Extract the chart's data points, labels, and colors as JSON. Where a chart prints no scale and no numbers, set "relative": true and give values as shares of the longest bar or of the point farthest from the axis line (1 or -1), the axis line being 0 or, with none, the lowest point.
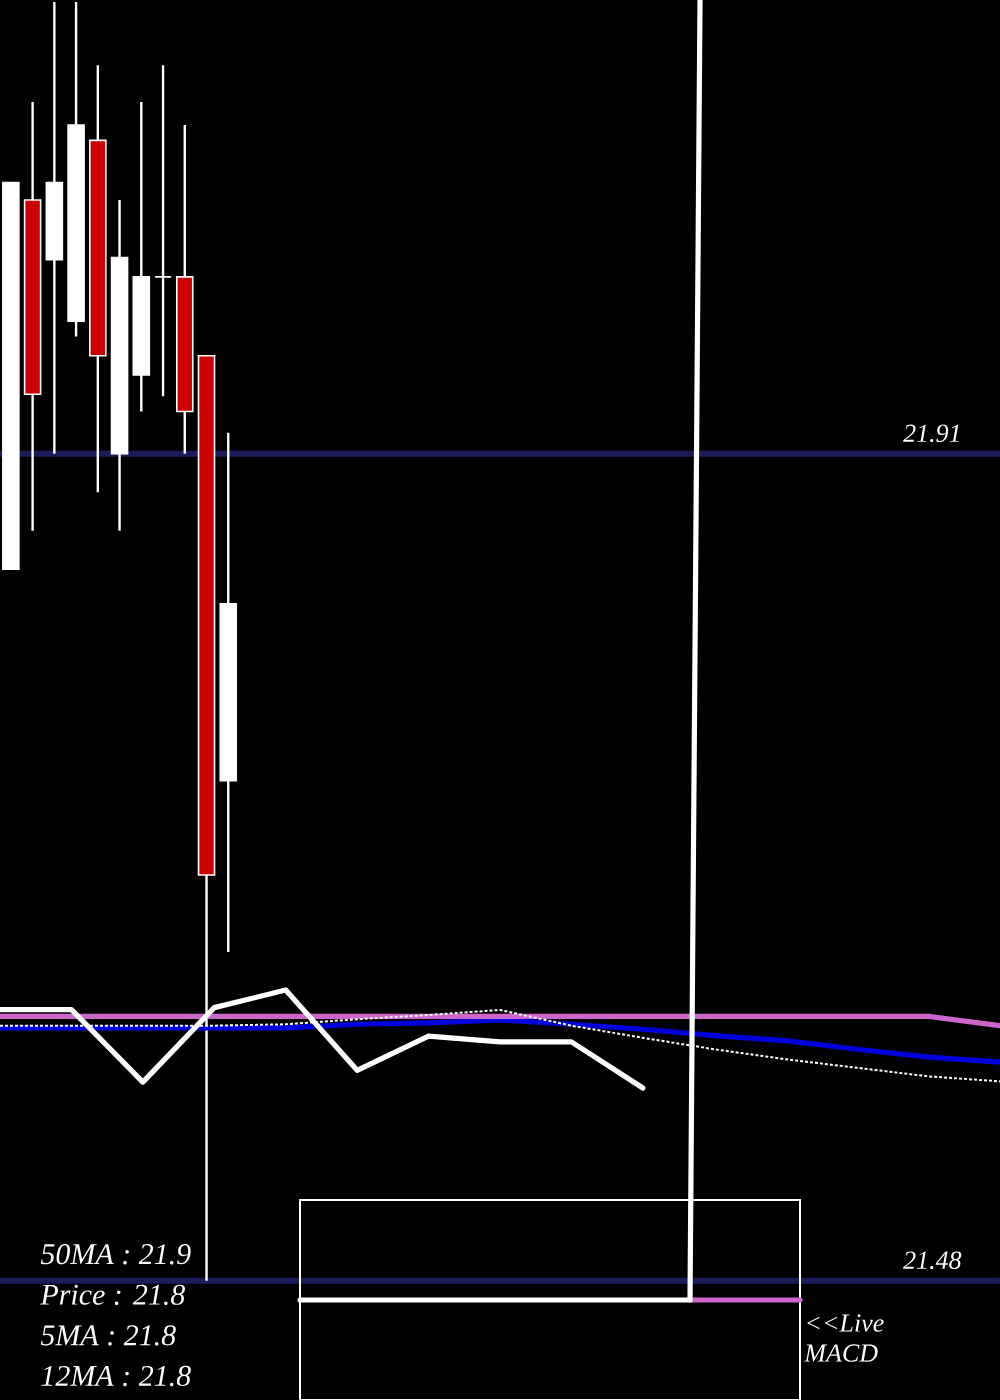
{
  "chart_data": [
    {
      "type": "candlestick",
      "categories": [
        null,
        null,
        null,
        null,
        null,
        null,
        null,
        null,
        null,
        null,
        null,
        null,
        null,
        null,
        null,
        null,
        null,
        null,
        null,
        null,
        null,
        null,
        null,
        null,
        null,
        null,
        null,
        null,
        null,
        null,
        null,
        null,
        null,
        null,
        null,
        null,
        null,
        null,
        null,
        null,
        null,
        null,
        null,
        null,
        null,
        null
      ],
      "ohlc": [
        [
          21.85,
          22.051,
          21.85,
          22.051
        ],
        [
          22.042,
          22.093,
          21.87,
          21.941
        ],
        [
          22.011,
          22.145,
          21.91,
          22.051
        ],
        [
          21.979,
          22.145,
          21.971,
          22.081
        ],
        [
          22.073,
          22.112,
          21.89,
          21.961
        ],
        [
          21.91,
          22.042,
          21.87,
          22.012
        ],
        [
          21.951,
          22.093,
          21.932,
          22.002
        ],
        [
          22.002,
          22.112,
          21.94,
          22.002
        ],
        [
          22.002,
          22.081,
          21.91,
          21.932
        ],
        [
          21.961,
          21.961,
          21.48,
          21.691
        ],
        [
          21.74,
          21.921,
          21.651,
          21.832
        ],
        null,
        null,
        null,
        null,
        null,
        null,
        null,
        null,
        null,
        null,
        null,
        null,
        null,
        null,
        null,
        null,
        null,
        null,
        null,
        null,
        null,
        null,
        null,
        null,
        null,
        null,
        null,
        null,
        null,
        null,
        null,
        null,
        null,
        null,
        null
      ],
      "colors": [
        "#ffffff",
        "#cc0000",
        "#ffffff",
        "#ffffff",
        "#cc0000",
        "#ffffff",
        "#ffffff",
        "#ffffff",
        "#cc0000",
        "#cc0000",
        "#ffffff",
        null,
        null,
        null,
        null,
        null,
        null,
        null,
        null,
        null,
        null,
        null,
        null,
        null,
        null,
        null,
        null,
        null,
        null,
        null,
        null,
        null,
        null,
        null,
        null,
        null,
        null,
        null,
        null,
        null,
        null,
        null,
        null,
        null,
        null,
        null
      ],
      "ylim": [
        21.418,
        22.146
      ],
      "ref_lines": [
        {
          "axis": "y",
          "value": 21.91,
          "label": "21.91",
          "color": "#1c1c5a"
        },
        {
          "axis": "y",
          "value": 21.48,
          "label": "21.48",
          "color": "#1c1c5a"
        }
      ]
    },
    {
      "type": "line",
      "relative": true,
      "categories": [
        null,
        null,
        null,
        null,
        null,
        null,
        null,
        null,
        null,
        null,
        null,
        null,
        null,
        null,
        null
      ],
      "series": [
        {
          "color": "#0000dd",
          "values": [
            0.75,
            0.75,
            0.75,
            0.75,
            0.75,
            0.8,
            0.82,
            0.86,
            0.8,
            0.73,
            0.64,
            0.57,
            0.45,
            0.34,
            0.27
          ]
        },
        {
          "color": "#cc66cc",
          "values": [
            0.91,
            0.91,
            0.91,
            0.91,
            0.91,
            0.91,
            0.91,
            0.91,
            0.91,
            0.91,
            0.91,
            0.91,
            0.91,
            0.91,
            0.78
          ]
        },
        {
          "color": "#ffffff",
          "line_style": "dotted",
          "values": [
            0.78,
            0.78,
            0.78,
            0.78,
            0.8,
            0.87,
            0.93,
            1.0,
            0.78,
            0.61,
            0.45,
            0.31,
            0.19,
            0.07,
            0.0
          ]
        }
      ],
      "annotations": [
        "50MA : 21.9",
        "Price : 21.8",
        "5MA : 21.8",
        "12MA : 21.8"
      ]
    },
    {
      "type": "line",
      "relative": true,
      "categories": [
        null,
        null,
        null,
        null,
        null,
        null,
        null,
        null,
        null,
        null,
        null,
        null,
        null,
        null,
        null
      ],
      "series": [
        {
          "color": "#ffffff",
          "values": [
            0.8,
            0.8,
            0.06,
            0.82,
            1.0,
            0.18,
            0.53,
            0.47,
            0.47,
            0.0,
            null,
            null,
            null,
            null,
            null
          ]
        }
      ]
    },
    {
      "type": "line",
      "relative": true,
      "categories": [
        null,
        null,
        null,
        null,
        null,
        null,
        null,
        null,
        null,
        null,
        null,
        null,
        null,
        null,
        null,
        null,
        null,
        null,
        null,
        null,
        null,
        null,
        null,
        null,
        null,
        null,
        null,
        null,
        null,
        null,
        null,
        null,
        null,
        null,
        null,
        null,
        null,
        null,
        null,
        null,
        null,
        null,
        null,
        null,
        null,
        null,
        null,
        null,
        null,
        null,
        null
      ],
      "series": [
        {
          "color": "#cc66cc",
          "values": [
            null,
            null,
            null,
            null,
            null,
            null,
            null,
            null,
            null,
            null,
            null,
            null,
            null,
            null,
            null,
            null,
            null,
            null,
            null,
            null,
            null,
            null,
            null,
            null,
            null,
            null,
            null,
            null,
            null,
            null,
            null,
            null,
            null,
            null,
            null,
            null,
            null,
            null,
            null,
            0,
            0,
            0,
            0,
            0,
            0,
            0,
            0,
            0,
            0,
            0,
            0
          ]
        },
        {
          "color": "#ffffff",
          "values": [
            0,
            0,
            0,
            0,
            0,
            0,
            0,
            0,
            0,
            0,
            0,
            0,
            0,
            0,
            0,
            0,
            0,
            0,
            0,
            0,
            0,
            0,
            0,
            0,
            0,
            0,
            0,
            0,
            0,
            0,
            0,
            0,
            0,
            0,
            0,
            0,
            0,
            0,
            0,
            0,
            1,
            null,
            null,
            null,
            null,
            null,
            null,
            null,
            null,
            null,
            null
          ]
        }
      ],
      "annotations": [
        "<<Live MACD"
      ]
    }
  ]
}
